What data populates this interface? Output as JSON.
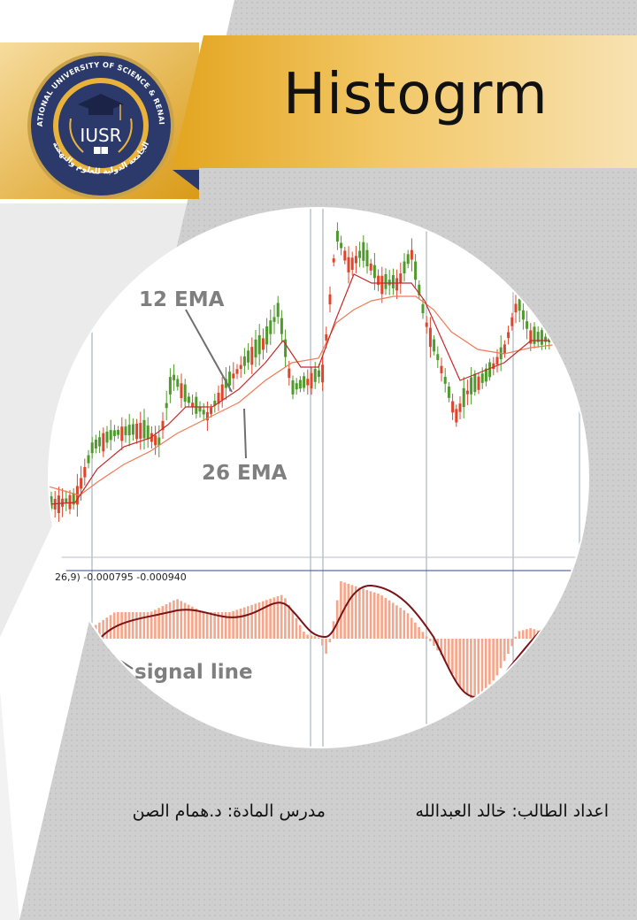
{
  "header": {
    "title": "Histogrm",
    "logo": {
      "ring_text_top": "INTERNATIONAL UNIVERSITY OF SCIENCE & RENAISSANCE",
      "ring_text_bottom": "الجامعة الدولية للعلوم والنهضة",
      "acronym": "IUSR"
    }
  },
  "chart": {
    "labels": {
      "ema12": "12 EMA",
      "ema26": "26 EMA",
      "signal": "signal line",
      "macd_params": "26,9) -0.000795 -0.000940"
    }
  },
  "footer": {
    "student": "اعداد الطالب: خالد العبدالله",
    "instructor": "مدرس المادة: د.همام الصن"
  },
  "colors": {
    "gold": "#e9b23a",
    "navy": "#2b3a6b",
    "bull": "#4e9a2b",
    "bear": "#e0452b",
    "histogram": "#f4a58a",
    "signal": "#7b1416"
  }
}
